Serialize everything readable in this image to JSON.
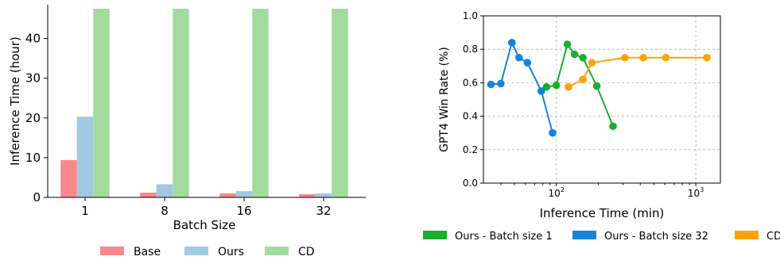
{
  "chart_data": [
    {
      "type": "bar",
      "xlabel": "Batch Size",
      "ylabel": "Inference Time (hour)",
      "categories": [
        "1",
        "8",
        "16",
        "32"
      ],
      "ylim": [
        0,
        48.5
      ],
      "yticks": [
        0,
        10,
        20,
        30,
        40
      ],
      "grid": false,
      "legend_position": "bottom",
      "series": [
        {
          "name": "Base",
          "color": "#f8888d",
          "values": [
            9.4,
            1.2,
            1.0,
            0.8
          ]
        },
        {
          "name": "Ours",
          "color": "#a2c9e2",
          "values": [
            20.3,
            3.3,
            1.6,
            1.0
          ]
        },
        {
          "name": "CD",
          "color": "#a3db9f",
          "values": [
            47.5,
            47.5,
            47.5,
            47.5
          ]
        }
      ]
    },
    {
      "type": "line",
      "xlabel": "Inference Time (min)",
      "ylabel": "GPT4 Win Rate (%)",
      "xscale": "log",
      "xlim": [
        30,
        1500
      ],
      "ylim": [
        0.0,
        1.0
      ],
      "xticks": [
        {
          "value": 100,
          "label": "10",
          "sup": "2"
        },
        {
          "value": 1000,
          "label": "10",
          "sup": "3"
        }
      ],
      "yticks": [
        {
          "value": 0.0,
          "label": "0.0"
        },
        {
          "value": 0.2,
          "label": "0.2"
        },
        {
          "value": 0.4,
          "label": "0.4"
        },
        {
          "value": 0.6,
          "label": "0.6"
        },
        {
          "value": 0.8,
          "label": "0.8"
        },
        {
          "value": 1.0,
          "label": "1.0"
        }
      ],
      "grid": true,
      "legend_position": "bottom",
      "series": [
        {
          "name": "Ours - Batch size 1",
          "color": "#18ae2e",
          "x": [
            85,
            100,
            120,
            135,
            155,
            195,
            255
          ],
          "y": [
            0.575,
            0.585,
            0.83,
            0.77,
            0.75,
            0.58,
            0.34
          ]
        },
        {
          "name": "Ours - Batch size 32",
          "color": "#1583db",
          "x": [
            34,
            40,
            48,
            54,
            62,
            78,
            94
          ],
          "y": [
            0.59,
            0.595,
            0.84,
            0.75,
            0.72,
            0.55,
            0.3
          ]
        },
        {
          "name": "CD",
          "color": "#ffa20a",
          "x": [
            122,
            155,
            180,
            310,
            420,
            610,
            1200
          ],
          "y": [
            0.575,
            0.62,
            0.72,
            0.75,
            0.75,
            0.75,
            0.75
          ]
        }
      ]
    }
  ]
}
